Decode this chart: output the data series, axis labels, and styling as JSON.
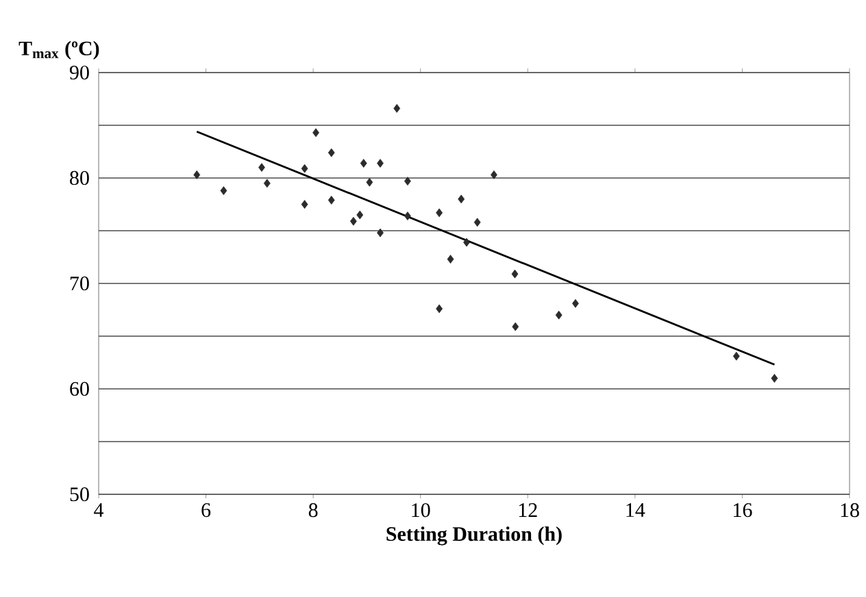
{
  "chart_data": {
    "type": "scatter",
    "xlabel": "Setting Duration (h)",
    "ylabel": "T$_{max}$ (ºC)",
    "xlim": [
      4,
      18
    ],
    "xticks": [
      4,
      6,
      8,
      10,
      12,
      14,
      16,
      18
    ],
    "ylim": [
      50,
      90
    ],
    "yticks": [
      50,
      {
        "value": 55,
        "label": null
      },
      60,
      {
        "value": 65,
        "label": null
      },
      70,
      {
        "value": 75,
        "label": null
      },
      80,
      {
        "value": 85,
        "label": null
      },
      90
    ],
    "grid": "y",
    "marker": "diamond",
    "series": [
      {
        "color": "#2b2b2b",
        "x": [
          5.83,
          6.33,
          7.04,
          7.14,
          7.84,
          7.84,
          8.05,
          8.34,
          8.34,
          8.75,
          8.87,
          8.94,
          9.05,
          9.25,
          9.25,
          9.56,
          9.76,
          9.76,
          10.35,
          10.35,
          10.56,
          10.76,
          10.86,
          11.06,
          11.37,
          11.76,
          11.77,
          12.58,
          12.89,
          15.89,
          16.6
        ],
        "values": [
          80.3,
          78.8,
          81.0,
          79.5,
          80.9,
          77.5,
          84.3,
          82.4,
          77.9,
          75.9,
          76.5,
          81.4,
          79.6,
          81.4,
          74.8,
          86.6,
          79.7,
          76.4,
          76.7,
          67.6,
          72.3,
          78.0,
          73.9,
          75.8,
          80.3,
          70.9,
          65.9,
          67.0,
          68.1,
          63.1,
          61.0
        ]
      },
      {
        "type": "line",
        "marker": "none",
        "line_style": "solid",
        "color": "#000000",
        "x": [
          5.83,
          16.6
        ],
        "values": [
          84.4,
          62.3
        ]
      }
    ]
  }
}
